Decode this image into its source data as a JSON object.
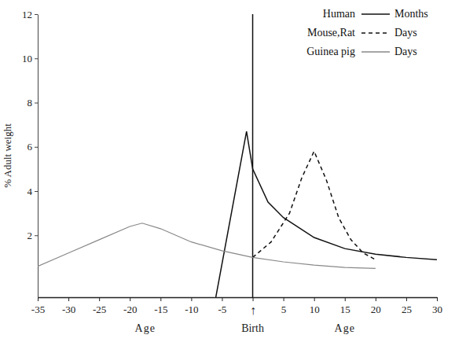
{
  "chart_data": {
    "type": "line",
    "ylabel": "% Adult weight",
    "xlabel": "Birth",
    "annotations": [
      "Age",
      "Age"
    ],
    "xlim": [
      -35,
      30
    ],
    "xticks": [
      -35,
      -30,
      -25,
      -20,
      -15,
      -10,
      -5,
      {
        "value": 0,
        "label": "↑"
      },
      5,
      10,
      15,
      20,
      25,
      30
    ],
    "ylim": [
      -0.8,
      12
    ],
    "yticks": [
      2,
      4,
      6,
      8,
      10,
      12
    ],
    "vlines": [
      0
    ],
    "grid": false,
    "legend": "upper right",
    "series": [
      {
        "name": "Human",
        "unit": "Months",
        "color": "#111111",
        "line_style": "solid",
        "x": [
          -6,
          -1,
          0,
          2.5,
          5,
          10,
          15,
          20,
          25,
          30
        ],
        "values": [
          -0.8,
          6.7,
          5.0,
          3.5,
          2.8,
          1.9,
          1.4,
          1.15,
          1.0,
          0.9
        ]
      },
      {
        "name": "Mouse,Rat",
        "unit": "Days",
        "color": "#111111",
        "line_style": "dashed",
        "x": [
          0,
          3,
          6,
          8,
          10,
          12,
          14,
          16,
          18,
          20
        ],
        "values": [
          1.0,
          1.7,
          3.0,
          4.6,
          5.8,
          4.5,
          2.8,
          1.8,
          1.2,
          0.9
        ]
      },
      {
        "name": "Guinea pig",
        "unit": "Days",
        "color": "#888888",
        "line_style": "solid",
        "x": [
          -35,
          -30,
          -25,
          -20,
          -18,
          -15,
          -10,
          -5,
          0,
          5,
          10,
          15,
          20
        ],
        "values": [
          0.6,
          1.2,
          1.8,
          2.4,
          2.55,
          2.3,
          1.7,
          1.3,
          1.0,
          0.8,
          0.65,
          0.55,
          0.5
        ]
      }
    ]
  }
}
